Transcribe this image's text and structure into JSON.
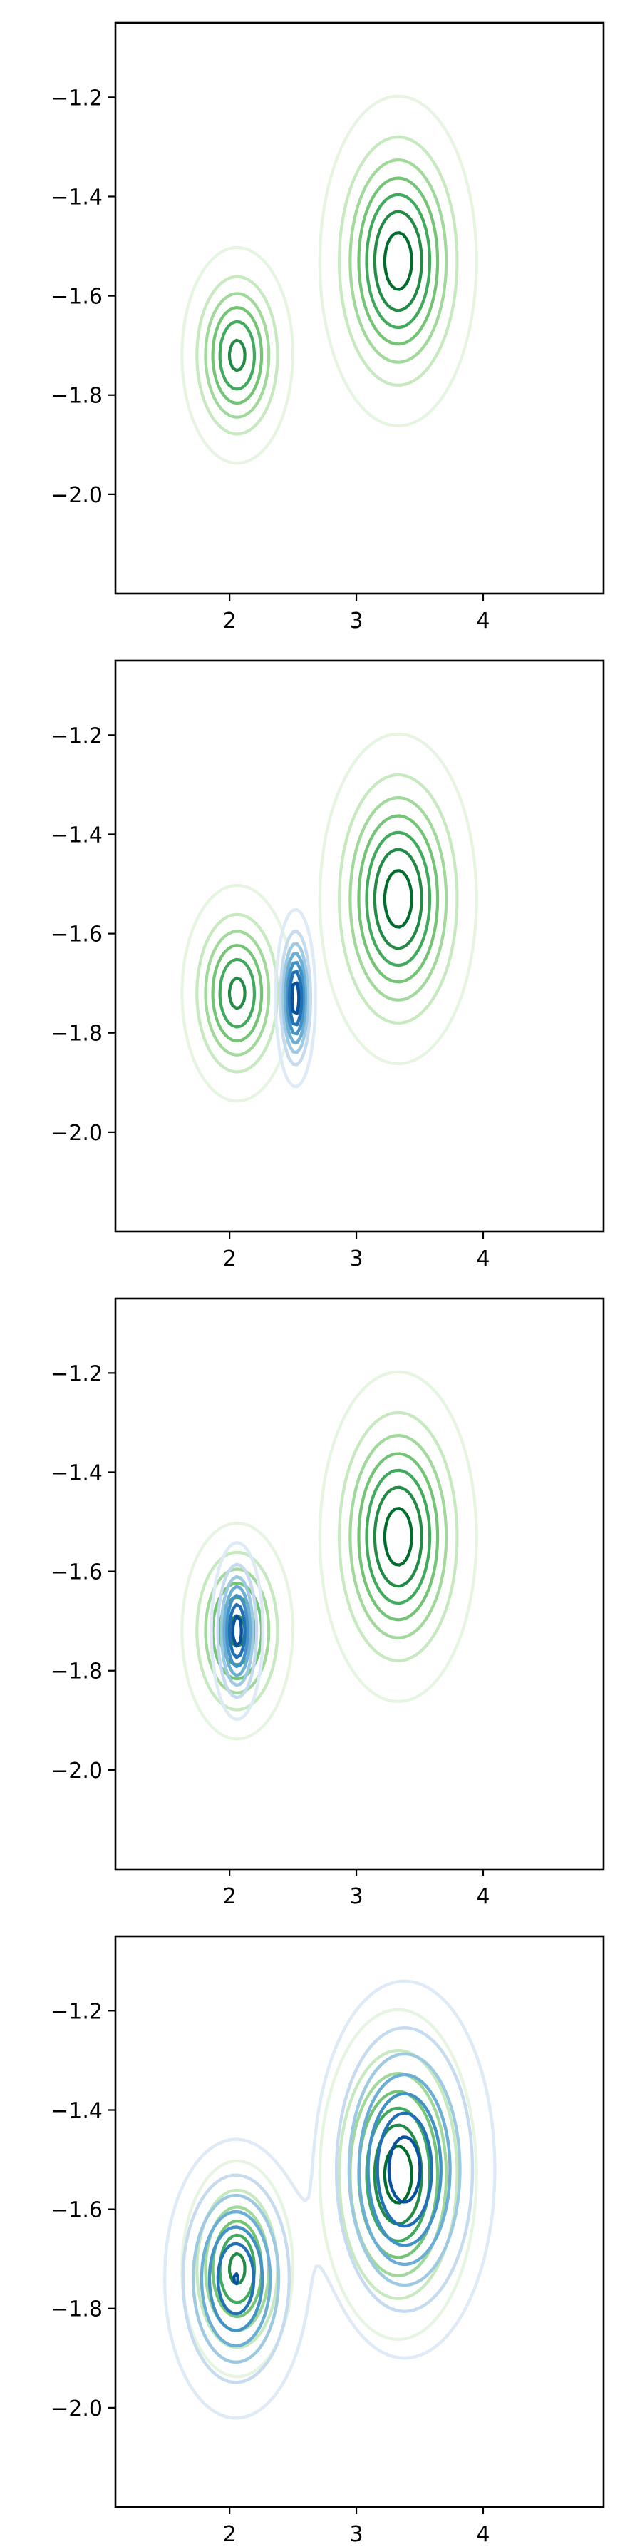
{
  "chart_data": [
    {
      "type": "contour",
      "xlim": [
        1.1,
        4.95
      ],
      "ylim": [
        -2.2,
        -1.05
      ],
      "xticks": [
        "2",
        "3",
        "4"
      ],
      "yticks": [
        "−1.2",
        "−1.4",
        "−1.6",
        "−1.8",
        "−2.0"
      ],
      "xtick_values": [
        2,
        3,
        4
      ],
      "ytick_values": [
        -1.2,
        -1.4,
        -1.6,
        -1.8,
        -2.0
      ],
      "grid": false,
      "series": [
        {
          "colormap": "Greens",
          "levels": 7,
          "components": [
            {
              "x": 3.33,
              "y": -1.53,
              "sx": 0.26,
              "sy": 0.14,
              "w": 0.55
            },
            {
              "x": 2.06,
              "y": -1.72,
              "sx": 0.19,
              "sy": 0.095,
              "w": 0.45
            }
          ],
          "peaks": [
            {
              "x": 3.33,
              "y": -1.53
            },
            {
              "x": 2.06,
              "y": -1.72
            }
          ]
        }
      ]
    },
    {
      "type": "contour",
      "xlim": [
        1.1,
        4.95
      ],
      "ylim": [
        -2.2,
        -1.05
      ],
      "xticks": [
        "2",
        "3",
        "4"
      ],
      "yticks": [
        "−1.2",
        "−1.4",
        "−1.6",
        "−1.8",
        "−2.0"
      ],
      "xtick_values": [
        2,
        3,
        4
      ],
      "ytick_values": [
        -1.2,
        -1.4,
        -1.6,
        -1.8,
        -2.0
      ],
      "grid": false,
      "series": [
        {
          "colormap": "Greens",
          "levels": 7,
          "components": [
            {
              "x": 3.33,
              "y": -1.53,
              "sx": 0.26,
              "sy": 0.14,
              "w": 0.55
            },
            {
              "x": 2.06,
              "y": -1.72,
              "sx": 0.19,
              "sy": 0.095,
              "w": 0.45
            }
          ]
        },
        {
          "colormap": "Blues",
          "levels": 7,
          "components": [
            {
              "x": 2.52,
              "y": -1.73,
              "sx": 0.065,
              "sy": 0.075,
              "w": 1.0
            }
          ],
          "peaks": [
            {
              "x": 2.52,
              "y": -1.73
            }
          ]
        }
      ]
    },
    {
      "type": "contour",
      "xlim": [
        1.1,
        4.95
      ],
      "ylim": [
        -2.2,
        -1.05
      ],
      "xticks": [
        "2",
        "3",
        "4"
      ],
      "yticks": [
        "−1.2",
        "−1.4",
        "−1.6",
        "−1.8",
        "−2.0"
      ],
      "xtick_values": [
        2,
        3,
        4
      ],
      "ytick_values": [
        -1.2,
        -1.4,
        -1.6,
        -1.8,
        -2.0
      ],
      "grid": false,
      "series": [
        {
          "colormap": "Greens",
          "levels": 7,
          "components": [
            {
              "x": 3.33,
              "y": -1.53,
              "sx": 0.26,
              "sy": 0.14,
              "w": 0.55
            },
            {
              "x": 2.06,
              "y": -1.72,
              "sx": 0.19,
              "sy": 0.095,
              "w": 0.45
            }
          ]
        },
        {
          "colormap": "Blues",
          "levels": 7,
          "components": [
            {
              "x": 2.06,
              "y": -1.72,
              "sx": 0.085,
              "sy": 0.075,
              "w": 1.0
            }
          ],
          "peaks": [
            {
              "x": 2.06,
              "y": -1.72
            }
          ]
        }
      ]
    },
    {
      "type": "contour",
      "xlim": [
        1.1,
        4.95
      ],
      "ylim": [
        -2.2,
        -1.05
      ],
      "xticks": [
        "2",
        "3",
        "4"
      ],
      "yticks": [
        "−1.2",
        "−1.4",
        "−1.6",
        "−1.8",
        "−2.0"
      ],
      "xtick_values": [
        2,
        3,
        4
      ],
      "ytick_values": [
        -1.2,
        -1.4,
        -1.6,
        -1.8,
        -2.0
      ],
      "grid": false,
      "series": [
        {
          "colormap": "Greens",
          "levels": 7,
          "components": [
            {
              "x": 3.33,
              "y": -1.53,
              "sx": 0.26,
              "sy": 0.14,
              "w": 0.55
            },
            {
              "x": 2.06,
              "y": -1.72,
              "sx": 0.19,
              "sy": 0.095,
              "w": 0.45
            }
          ]
        },
        {
          "colormap": "Blues",
          "levels": 7,
          "components": [
            {
              "x": 3.38,
              "y": -1.52,
              "sx": 0.3,
              "sy": 0.16,
              "w": 0.52
            },
            {
              "x": 2.05,
              "y": -1.74,
              "sx": 0.24,
              "sy": 0.12,
              "w": 0.48
            }
          ],
          "peaks": [
            {
              "x": 3.38,
              "y": -1.52
            },
            {
              "x": 2.05,
              "y": -1.74
            }
          ]
        }
      ]
    }
  ],
  "colors": {
    "Greens": [
      "#e6f5e1",
      "#c7e9c0",
      "#a1d99b",
      "#74c476",
      "#41ab5d",
      "#238b45",
      "#006d2c"
    ],
    "Blues": [
      "#deebf7",
      "#c6dbef",
      "#9ecae1",
      "#6baed6",
      "#4292c6",
      "#2171b5",
      "#08519c"
    ]
  }
}
